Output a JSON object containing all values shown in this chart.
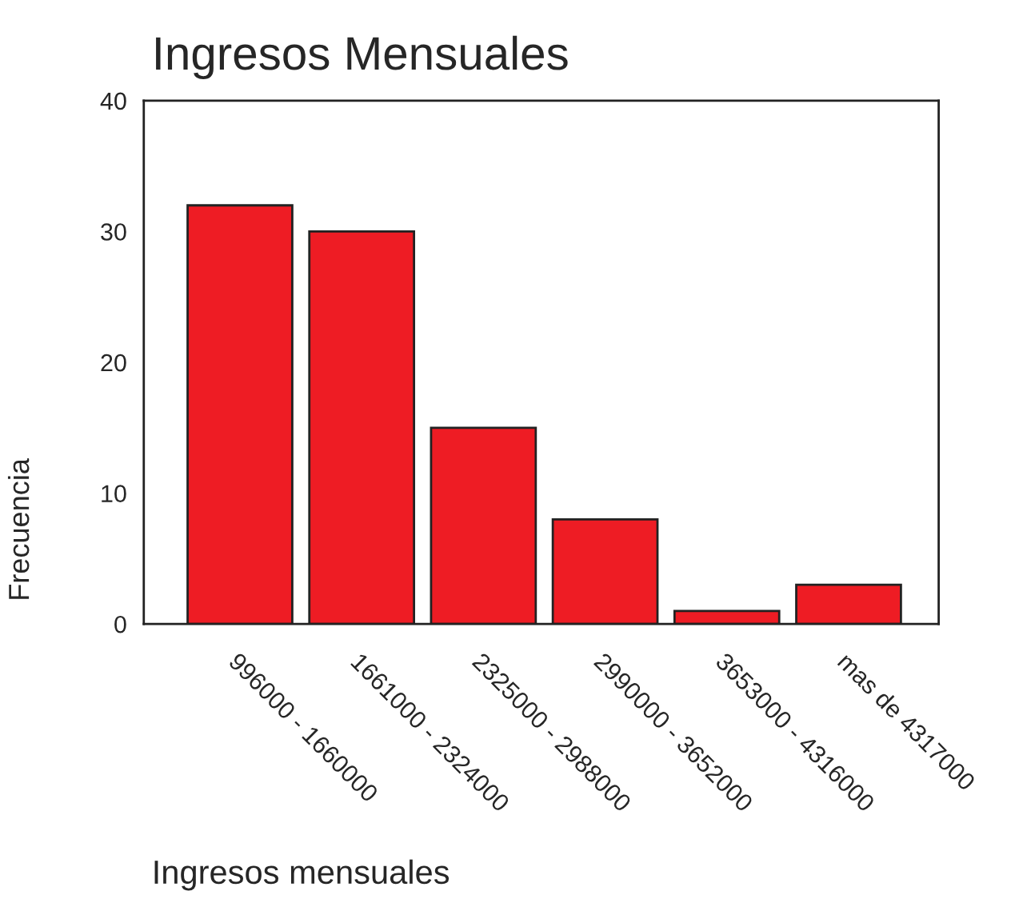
{
  "chart_data": {
    "type": "bar",
    "title": "Ingresos Mensuales",
    "xlabel": "Ingresos mensuales",
    "ylabel": "Frecuencia",
    "categories": [
      "996000 - 1660000",
      "1661000 - 2324000",
      "2325000 - 2988000",
      "2990000 - 3652000",
      "3653000 - 4316000",
      "mas de 4317000"
    ],
    "values": [
      32,
      30,
      15,
      8,
      1,
      3
    ],
    "color": "#ee1c24",
    "ylim": [
      0,
      40
    ],
    "yticks": [
      0,
      10,
      20,
      30,
      40
    ],
    "grid": false
  }
}
